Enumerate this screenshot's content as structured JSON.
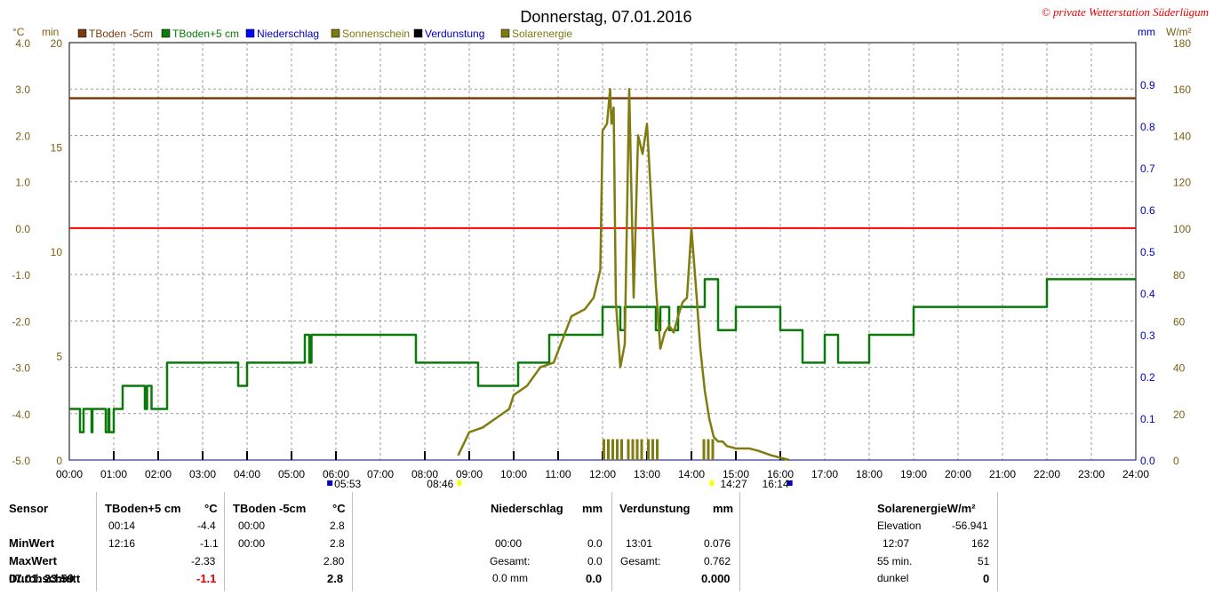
{
  "title": "Donnerstag, 07.01.2016",
  "copyright": "© private Wetterstation Süderlügum",
  "axis_units": {
    "celsius": "°C",
    "minutes": "min",
    "mm": "mm",
    "wm2": "W/m²"
  },
  "legend": [
    {
      "label": "TBoden -5cm",
      "color": "#7a3a10"
    },
    {
      "label": "TBoden+5 cm",
      "color": "#0a7a0a"
    },
    {
      "label": "Niederschlag",
      "color": "#0000ff"
    },
    {
      "label": "Sonnenschein",
      "color": "#7d7a10"
    },
    {
      "label": "Verdunstung",
      "color": "#000000"
    },
    {
      "label": "Solarenergie",
      "color": "#7d7a10"
    }
  ],
  "colors": {
    "tboden_minus5": "#7a3a10",
    "tboden_plus5": "#0a7a0a",
    "solar": "#807c10",
    "zero_line": "#ff0000",
    "mm_axis": "#0000c0",
    "grid": "#9a9a9a"
  },
  "sun_events": {
    "sunrise": "05:53",
    "sunset": "16:14",
    "sunshine_start": "08:46",
    "sunshine_end": "14:27"
  },
  "chart_data": {
    "type": "line",
    "x_unit": "hours",
    "xlim": [
      0,
      24
    ],
    "x_ticks": [
      "00:00",
      "01:00",
      "02:00",
      "03:00",
      "04:00",
      "05:00",
      "06:00",
      "07:00",
      "08:00",
      "09:00",
      "10:00",
      "11:00",
      "12:00",
      "13:00",
      "14:00",
      "15:00",
      "16:00",
      "17:00",
      "18:00",
      "19:00",
      "20:00",
      "21:00",
      "22:00",
      "23:00",
      "24:00"
    ],
    "y_left_celsius": {
      "range": [
        -5,
        4
      ],
      "ticks": [
        "-5.0",
        "-4.0",
        "-3.0",
        "-2.0",
        "-1.0",
        "0.0",
        "1.0",
        "2.0",
        "3.0",
        "4.0"
      ]
    },
    "y_left_minutes": {
      "range": [
        0,
        20
      ],
      "ticks": [
        "0",
        "5",
        "10",
        "15",
        "20"
      ]
    },
    "y_right_mm": {
      "range": [
        0,
        1
      ],
      "ticks": [
        "0.0",
        "0.1",
        "0.2",
        "0.3",
        "0.4",
        "0.5",
        "0.6",
        "0.7",
        "0.8",
        "0.9"
      ]
    },
    "y_right_wm2": {
      "range": [
        0,
        180
      ],
      "ticks": [
        "0",
        "20",
        "40",
        "60",
        "80",
        "100",
        "120",
        "140",
        "160",
        "180"
      ]
    },
    "grid": true,
    "series": [
      {
        "name": "TBoden -5cm",
        "axis": "celsius",
        "x": [
          0,
          24
        ],
        "y": [
          2.8,
          2.8
        ]
      },
      {
        "name": "TBoden+5 cm",
        "axis": "celsius",
        "step": true,
        "x": [
          0,
          0.24,
          0.32,
          0.5,
          0.52,
          0.82,
          0.88,
          0.9,
          1.0,
          1.2,
          1.7,
          1.75,
          1.85,
          2.2,
          3.8,
          4.0,
          5.3,
          5.4,
          5.45,
          6.0,
          7.8,
          9.2,
          10.1,
          10.8,
          12.0,
          12.4,
          12.5,
          13.2,
          13.3,
          13.5,
          13.7,
          14.0,
          14.3,
          14.6,
          15.0,
          16.0,
          16.5,
          17.0,
          17.3,
          18.0,
          19.0,
          22.0,
          24
        ],
        "y": [
          -3.9,
          -4.4,
          -3.9,
          -4.4,
          -3.9,
          -4.4,
          -3.9,
          -4.4,
          -3.9,
          -3.4,
          -3.9,
          -3.4,
          -3.9,
          -2.9,
          -3.4,
          -2.9,
          -2.3,
          -2.9,
          -2.3,
          -2.3,
          -2.9,
          -3.4,
          -2.9,
          -2.3,
          -1.7,
          -2.2,
          -1.7,
          -2.2,
          -1.7,
          -2.2,
          -1.7,
          -1.7,
          -1.1,
          -2.2,
          -1.7,
          -2.2,
          -2.9,
          -2.3,
          -2.9,
          -2.3,
          -1.7,
          -1.1,
          -1.1
        ]
      },
      {
        "name": "Solarenergie",
        "axis": "wm2",
        "x": [
          8.75,
          9.0,
          9.3,
          9.6,
          9.9,
          10.0,
          10.3,
          10.6,
          10.9,
          11.1,
          11.3,
          11.6,
          11.8,
          11.95,
          12.0,
          12.1,
          12.17,
          12.2,
          12.25,
          12.3,
          12.4,
          12.5,
          12.6,
          12.7,
          12.8,
          12.9,
          13.0,
          13.1,
          13.2,
          13.3,
          13.4,
          13.5,
          13.6,
          13.7,
          13.8,
          13.9,
          14.0,
          14.1,
          14.2,
          14.3,
          14.4,
          14.5,
          14.6,
          14.7,
          14.8,
          15.0,
          15.3,
          15.5,
          15.8,
          16.0,
          16.2
        ],
        "y": [
          2,
          12,
          14,
          18,
          22,
          28,
          32,
          40,
          42,
          52,
          62,
          65,
          70,
          82,
          142,
          145,
          160,
          145,
          152,
          68,
          40,
          50,
          160,
          70,
          140,
          132,
          145,
          110,
          75,
          48,
          55,
          58,
          55,
          62,
          68,
          70,
          100,
          75,
          48,
          30,
          18,
          10,
          8,
          8,
          6,
          5,
          5,
          4,
          2,
          1,
          0
        ]
      }
    ],
    "sunshine_bars": {
      "x": [
        12.0,
        12.1,
        12.2,
        12.3,
        12.4,
        12.55,
        12.65,
        12.75,
        12.85,
        13.0,
        13.1,
        13.2,
        14.25,
        14.35,
        14.45
      ],
      "minutes": [
        1,
        1,
        1,
        1,
        1,
        1,
        1,
        1,
        1,
        1,
        1,
        1,
        1,
        1,
        1
      ]
    },
    "evaporation_ticks": [
      1,
      2,
      3,
      4,
      5,
      6,
      8,
      9,
      10,
      11,
      12,
      13,
      14,
      15,
      16
    ]
  },
  "table": {
    "sensor": {
      "header": "Sensor",
      "rows": [
        "MinWert",
        "MaxWert",
        "Durchschnitt",
        "07.01. 23:59"
      ]
    },
    "tb5": {
      "header": "TBoden+5 cm",
      "unit": "°C",
      "min_time": "00:14",
      "min_val": "-4.4",
      "max_time": "12:16",
      "max_val": "-1.1",
      "avg": "-2.33",
      "current": "-1.1"
    },
    "tbm5": {
      "header": "TBoden -5cm",
      "unit": "°C",
      "min_time": "00:00",
      "min_val": "2.8",
      "max_time": "00:00",
      "max_val": "2.8",
      "avg": "2.80",
      "current": "2.8"
    },
    "rain": {
      "header": "Niederschlag",
      "unit": "mm",
      "max_time": "00:00",
      "max_val": "0.0",
      "total_label": "Gesamt:",
      "total_val": "0.0",
      "current_label": "0.0 mm",
      "current_val": "0.0"
    },
    "evap": {
      "header": "Verdunstung",
      "unit": "mm",
      "max_time": "13:01",
      "max_val": "0.076",
      "total_label": "Gesamt:",
      "total_val": "0.762",
      "current_val": "0.000"
    },
    "solar": {
      "header": "SolarenergieW/m²",
      "elev_label": "Elevation",
      "elev_val": "-56.941",
      "max_time": "12:07",
      "max_val": "162",
      "avg_label": "55 min.",
      "avg_val": "51",
      "current_label": "dunkel",
      "current_val": "0"
    }
  }
}
